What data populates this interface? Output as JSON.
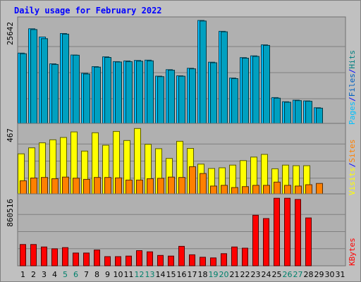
{
  "chart_data": {
    "type": "bar",
    "title": "Daily usage for February 2022",
    "colors": {
      "hits": "#00c0ff",
      "files": "#00a0c0",
      "pages": "#008080",
      "visits": "#ffff00",
      "sites": "#ff8000",
      "kb": "#ff0000",
      "title": "#0000ff",
      "weekend_tick": "#00806b",
      "frame_bg": "#c0c0c0",
      "panel_bg": "#b0b0b0",
      "grid": "#808080"
    },
    "days": [
      "1",
      "2",
      "3",
      "4",
      "5",
      "6",
      "7",
      "8",
      "9",
      "10",
      "11",
      "12",
      "13",
      "14",
      "15",
      "16",
      "17",
      "18",
      "19",
      "20",
      "21",
      "22",
      "23",
      "24",
      "25",
      "26",
      "27",
      "28",
      "29",
      "30",
      "31"
    ],
    "weekend_days": [
      "5",
      "6",
      "12",
      "13",
      "19",
      "20",
      "26",
      "27"
    ],
    "panels": [
      {
        "ymax_label": "25642",
        "ymax": 25642,
        "legend": [
          {
            "text": "Pages",
            "color": "#00c0ff"
          },
          {
            "text": "/",
            "color": "#0000ff"
          },
          {
            "text": "Files",
            "color": "#0060c0"
          },
          {
            "text": "/",
            "color": "#0000ff"
          },
          {
            "text": "Hits",
            "color": "#008080"
          }
        ],
        "series": [
          {
            "key": "hits",
            "values": [
              17620,
              23600,
              21570,
              14980,
              22440,
              17160,
              12640,
              14290,
              16710,
              15530,
              15690,
              15810,
              15880,
              11950,
              13550,
              12050,
              13890,
              25640,
              15390,
              22970,
              11480,
              16520,
              16950,
              19650,
              6680,
              5660,
              6050,
              5880,
              4200,
              0,
              0
            ]
          },
          {
            "key": "files",
            "values": [
              17470,
              23400,
              21180,
              14830,
              22280,
              17100,
              12500,
              14170,
              16550,
              15430,
              15530,
              15630,
              15720,
              11830,
              13410,
              11940,
              13750,
              25500,
              15250,
              22850,
              11350,
              16380,
              16810,
              19510,
              6550,
              5550,
              5950,
              5780,
              4090,
              0,
              0
            ]
          }
        ]
      },
      {
        "ymax_label": "467",
        "ymax": 467,
        "legend": [
          {
            "text": "Visits",
            "color": "#ffff00"
          },
          {
            "text": "/",
            "color": "#0000ff"
          },
          {
            "text": "Sites",
            "color": "#ff8000"
          }
        ],
        "series": [
          {
            "key": "visits",
            "values": [
              283,
              324,
              358,
              379,
              395,
              433,
              302,
              427,
              342,
              436,
              374,
              456,
              348,
              318,
              252,
              369,
              320,
              213,
              183,
              188,
              206,
              237,
              261,
              279,
              181,
              206,
              202,
              202,
              0,
              0,
              0
            ]
          },
          {
            "key": "sites",
            "values": [
              99,
              118,
              122,
              113,
              124,
              117,
              109,
              122,
              122,
              119,
              104,
              104,
              113,
              116,
              124,
              122,
              195,
              149,
              63,
              68,
              53,
              59,
              68,
              68,
              90,
              68,
              63,
              72,
              81,
              0,
              0
            ]
          }
        ]
      },
      {
        "ymax_label": "860516",
        "ymax": 860516,
        "legend": [
          {
            "text": "KBytes",
            "color": "#ff0000"
          }
        ],
        "series": [
          {
            "key": "kb",
            "values": [
              268000,
              268000,
              237000,
              214000,
              229000,
              161000,
              161000,
              199000,
              115000,
              115000,
              122000,
              191000,
              176000,
              130000,
              122000,
              245000,
              138000,
              107000,
              99000,
              153000,
              237000,
              222000,
              636000,
              594000,
              850000,
              850000,
              835000,
              602000,
              0,
              0,
              0
            ]
          }
        ]
      }
    ]
  }
}
